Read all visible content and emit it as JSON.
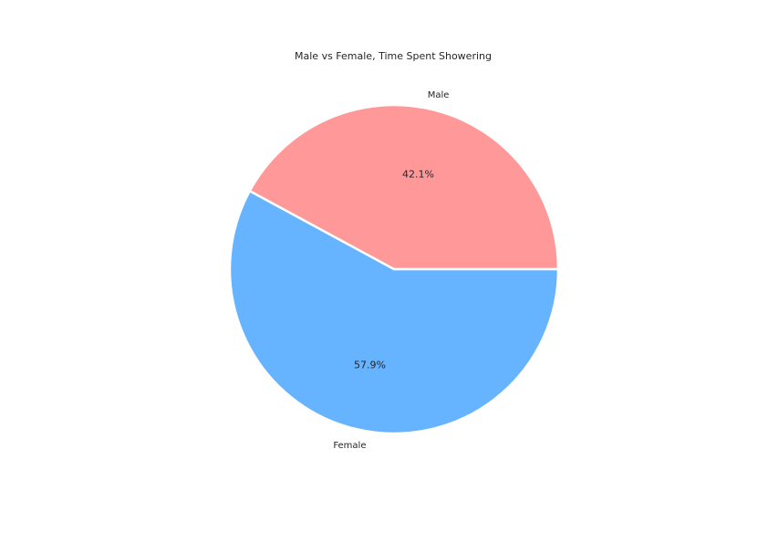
{
  "chart_data": {
    "type": "pie",
    "title": "Male vs Female, Time Spent Showering",
    "categories": [
      "Male",
      "Female"
    ],
    "values": [
      42.1,
      57.9
    ],
    "percent_labels": [
      "42.1%",
      "57.9%"
    ],
    "colors": [
      "#ff9999",
      "#66b3ff"
    ],
    "start_angle_deg": 0,
    "direction": "counterclockwise"
  }
}
